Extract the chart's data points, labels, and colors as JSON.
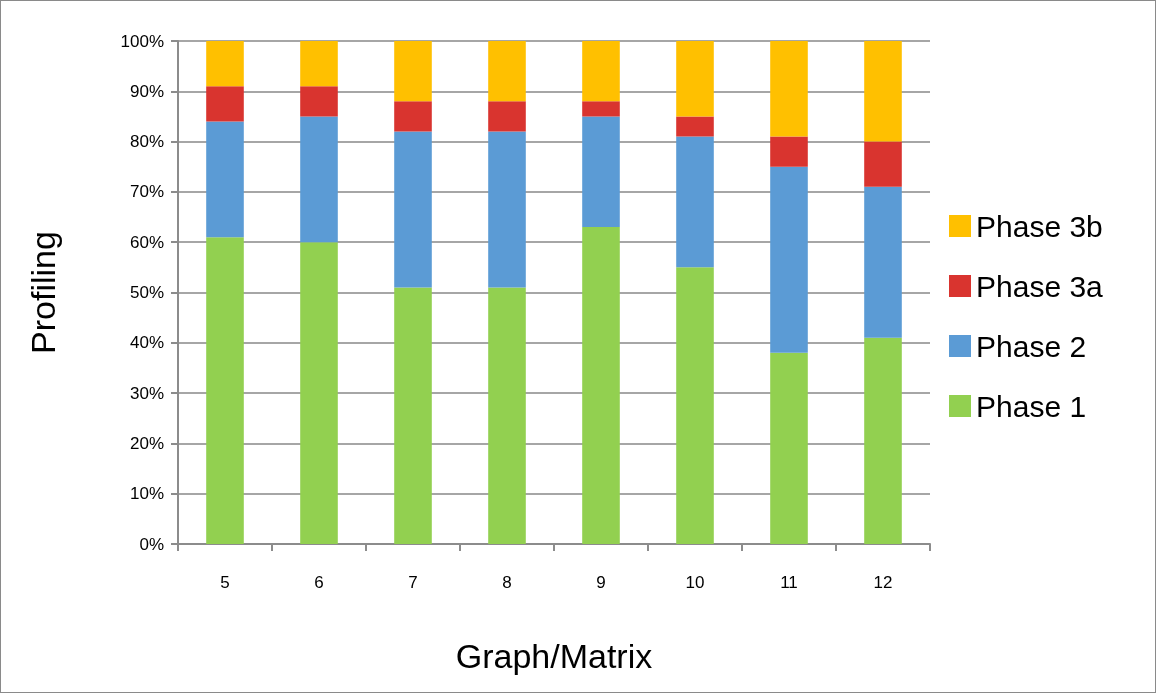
{
  "chart_data": {
    "type": "bar",
    "stacked": true,
    "categories": [
      "5",
      "6",
      "7",
      "8",
      "9",
      "10",
      "11",
      "12"
    ],
    "series": [
      {
        "name": "Phase 1",
        "color": "#92d050",
        "values": [
          61,
          60,
          51,
          51,
          63,
          55,
          38,
          41
        ]
      },
      {
        "name": "Phase 2",
        "color": "#5b9bd5",
        "values": [
          23,
          25,
          31,
          31,
          22,
          26,
          37,
          30
        ]
      },
      {
        "name": "Phase 3a",
        "color": "#d9342f",
        "values": [
          7,
          6,
          6,
          6,
          3,
          4,
          6,
          9
        ]
      },
      {
        "name": "Phase 3b",
        "color": "#ffc000",
        "values": [
          9,
          9,
          12,
          12,
          12,
          15,
          19,
          20
        ]
      }
    ],
    "xlabel": "Graph/Matrix",
    "ylabel": "Profiling",
    "ylim": [
      0,
      100
    ],
    "yticks": [
      {
        "value": 0,
        "label": "0%"
      },
      {
        "value": 10,
        "label": "10%"
      },
      {
        "value": 20,
        "label": "20%"
      },
      {
        "value": 30,
        "label": "30%"
      },
      {
        "value": 40,
        "label": "40%"
      },
      {
        "value": 50,
        "label": "50%"
      },
      {
        "value": 60,
        "label": "60%"
      },
      {
        "value": 70,
        "label": "70%"
      },
      {
        "value": 80,
        "label": "80%"
      },
      {
        "value": 90,
        "label": "90%"
      },
      {
        "value": 100,
        "label": "100%"
      }
    ],
    "grid": "y",
    "legend": "right"
  }
}
